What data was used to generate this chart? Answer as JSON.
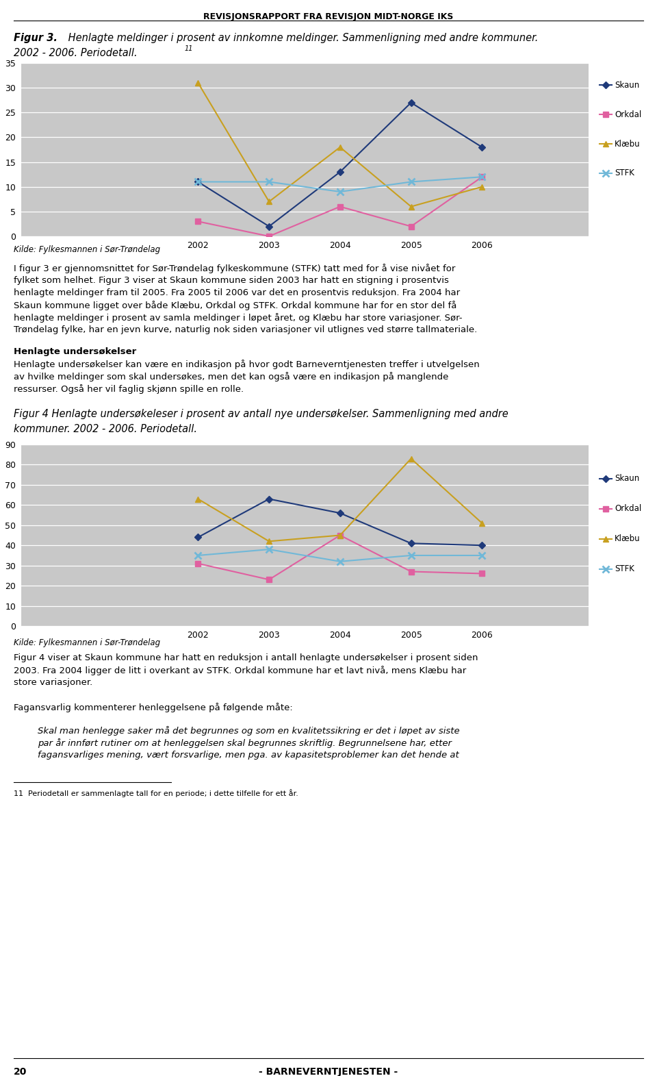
{
  "header": "REVISJONSRAPPORT FRA REVISJON MIDT-NORGE IKS",
  "fig3_title_line1": "Figur 3.  Henlagte meldinger i prosent av innkomne meldinger. Sammenligning med andre kommuner.",
  "fig3_title_line2": "2002 - 2006. Periodetall.",
  "fig3_footnote_sup": "11",
  "fig3_ylim": [
    0,
    35
  ],
  "fig3_yticks": [
    0,
    5,
    10,
    15,
    20,
    25,
    30,
    35
  ],
  "fig3_years": [
    2002,
    2003,
    2004,
    2005,
    2006
  ],
  "fig3_skaun": [
    11,
    2,
    13,
    27,
    18
  ],
  "fig3_orkdal": [
    3,
    0,
    6,
    2,
    12
  ],
  "fig3_klaebu": [
    31,
    7,
    18,
    6,
    10
  ],
  "fig3_stfk": [
    11,
    11,
    9,
    11,
    12
  ],
  "fig4_title_line1": "Figur 4 Henlagte undersøkeleser i prosent av antall nye undersøkelser. Sammenligning med andre",
  "fig4_title_line2": "kommuner. 2002 - 2006. Periodetall.",
  "fig4_ylim": [
    0,
    90
  ],
  "fig4_yticks": [
    0,
    10,
    20,
    30,
    40,
    50,
    60,
    70,
    80,
    90
  ],
  "fig4_years": [
    2002,
    2003,
    2004,
    2005,
    2006
  ],
  "fig4_skaun": [
    44,
    63,
    56,
    41,
    40
  ],
  "fig4_orkdal": [
    31,
    23,
    45,
    27,
    26
  ],
  "fig4_klaebu": [
    63,
    42,
    45,
    83,
    51
  ],
  "fig4_stfk": [
    35,
    38,
    32,
    35,
    35
  ],
  "legend_labels": [
    "Skaun",
    "Orkdal",
    "Klæbu",
    "STFK"
  ],
  "color_skaun": "#1F3A7A",
  "color_orkdal": "#E060A0",
  "color_klaebu": "#C8A020",
  "color_stfk": "#70B8D8",
  "plot_area_color": "#C8C8C8",
  "source_text": "Kilde: Fylkesmannen i Sør-Trøndelag",
  "body1_lines": [
    "I figur 3 er gjennomsnittet for Sør-Trøndelag fylkeskommune (STFK) tatt med for å vise nivået for",
    "fylket som helhet. Figur 3 viser at Skaun kommune siden 2003 har hatt en stigning i prosentvis",
    "henlagte meldinger fram til 2005. Fra 2005 til 2006 var det en prosentvis reduksjon. Fra 2004 har",
    "Skaun kommune ligget over både Klæbu, Orkdal og STFK. Orkdal kommune har for en stor del få",
    "henlagte meldinger i prosent av samla meldinger i løpet året, og Klæbu har store variasjoner. Sør-",
    "Trøndelag fylke, har en jevn kurve, naturlig nok siden variasjoner vil utlignes ved større tallmateriale."
  ],
  "section_bold": "Henlagte undersøkelser",
  "body2_lines": [
    "Henlagte undersøkelser kan være en indikasjon på hvor godt Barneverntjenesten treffer i utvelgelsen",
    "av hvilke meldinger som skal undersøkes, men det kan også være en indikasjon på manglende",
    "ressurser. Også her vil faglig skjønn spille en rolle."
  ],
  "body3_lines": [
    "Figur 4 viser at Skaun kommune har hatt en reduksjon i antall henlagte undersøkelser i prosent siden",
    "2003. Fra 2004 ligger de litt i overkant av STFK. Orkdal kommune har et lavt nivå, mens Klæbu har",
    "store variasjoner."
  ],
  "footer_text": "Fagansvarlig kommenterer henleggelsene på følgende måte:",
  "footer_italic_lines": [
    "Skal man henlegge saker må det begrunnes og som en kvalitetssikring er det i løpet av siste",
    "par år innført rutiner om at henleggelsen skal begrunnes skriftlig. Begrunnelsene har, etter",
    "fagansvarliges mening, vært forsvarlige, men pga. av kapasitetsproblemer kan det hende at"
  ],
  "footnote_text": "11  Periodetall er sammenlagte tall for en periode; i dette tilfelle for ett år.",
  "page_number": "20",
  "page_footer": "- BARNEVERNTJENESTEN -"
}
